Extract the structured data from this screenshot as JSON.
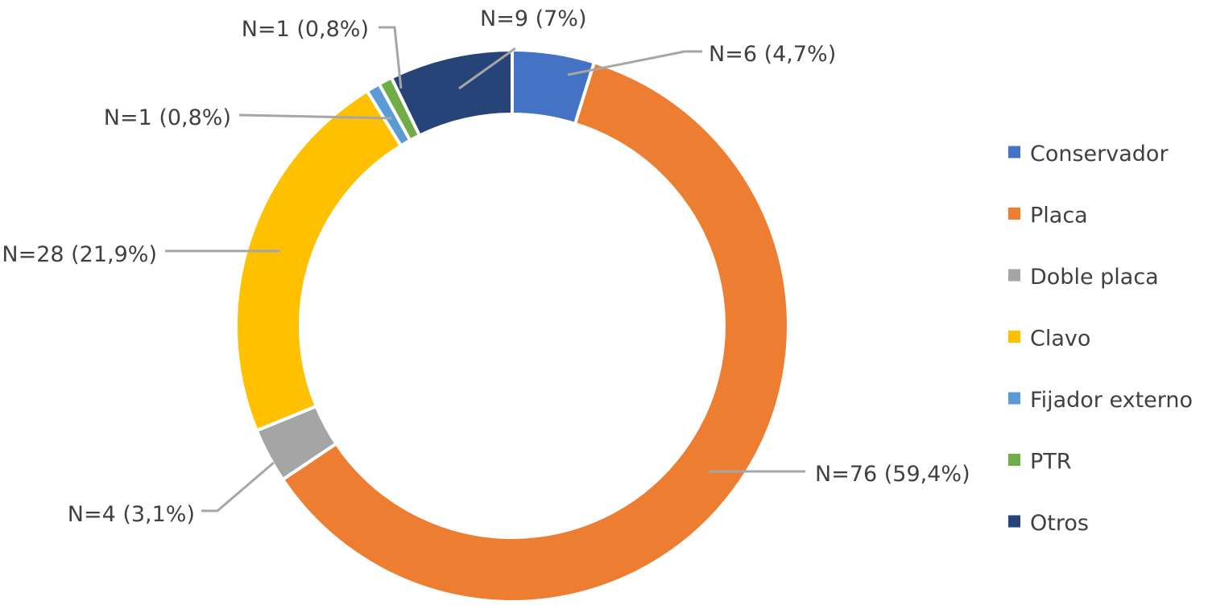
{
  "chart_data": {
    "type": "pie",
    "variant": "doughnut",
    "legend_position": "right",
    "categories": [
      "Conservador",
      "Placa",
      "Doble placa",
      "Clavo",
      "Fijador externo",
      "PTR",
      "Otros"
    ],
    "values": [
      6,
      76,
      4,
      28,
      1,
      1,
      9
    ],
    "percentages": [
      4.7,
      59.4,
      3.1,
      21.9,
      0.8,
      0.8,
      7
    ],
    "data_labels": [
      "N=6 (4,7%)",
      "N=76 (59,4%)",
      "N=4 (3,1%)",
      "N=28 (21,9%)",
      "N=1 (0,8%)",
      "N=1 (0,8%)",
      "N=9 (7%)"
    ],
    "colors": [
      "#4472c4",
      "#ed7d31",
      "#a5a5a5",
      "#ffc000",
      "#5b9bd5",
      "#70ad47",
      "#264478"
    ]
  }
}
